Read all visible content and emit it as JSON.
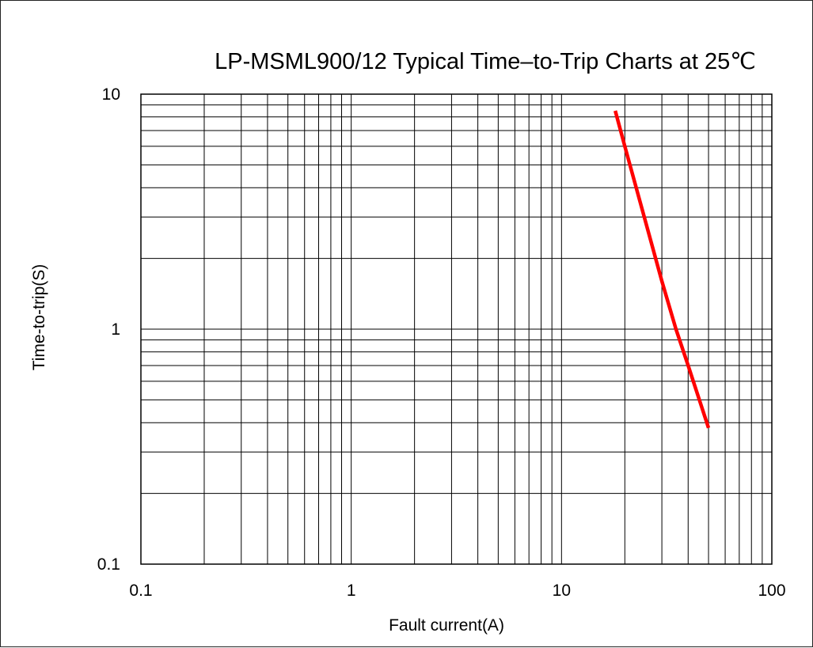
{
  "chart_data": {
    "type": "line",
    "title": "LP-MSML900/12 Typical Time–to-Trip Charts at 25℃",
    "xlabel": "Fault current(A)",
    "ylabel": "Time-to-trip(S)",
    "x_scale": "log",
    "y_scale": "log",
    "xlim": [
      0.1,
      100
    ],
    "ylim": [
      0.1,
      10
    ],
    "x_ticks": [
      0.1,
      1,
      10,
      100
    ],
    "x_tick_labels": [
      "0.1",
      "1",
      "10",
      "100"
    ],
    "y_ticks": [
      0.1,
      1,
      10
    ],
    "y_tick_labels": [
      "0.1",
      "1",
      "10"
    ],
    "grid": true,
    "legend": "none",
    "series": [
      {
        "color": "#ff0000",
        "x": [
          18,
          20,
          30,
          35,
          40,
          50
        ],
        "y": [
          8.5,
          6,
          1.6,
          1,
          0.7,
          0.38
        ]
      }
    ]
  }
}
